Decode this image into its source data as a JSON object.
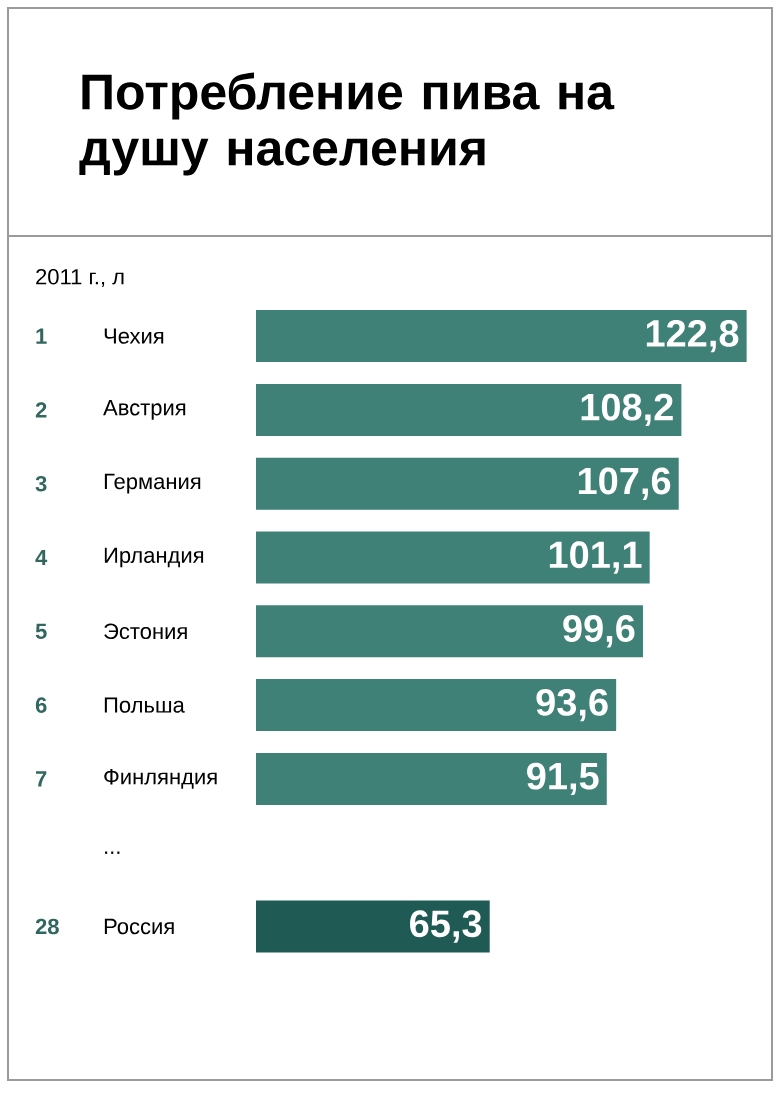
{
  "chart_data": {
    "type": "bar",
    "orientation": "horizontal",
    "title": "Потребление пива на душу населения",
    "subtitle": "2011 г., л",
    "categories": [
      "Чехия",
      "Австрия",
      "Германия",
      "Ирландия",
      "Эстония",
      "Польша",
      "Финляндия",
      "...",
      "Россия"
    ],
    "values": [
      122.8,
      108.2,
      107.6,
      101.1,
      99.6,
      93.6,
      91.5,
      null,
      65.3
    ],
    "value_labels": [
      "122,8",
      "108,2",
      "107,6",
      "101,1",
      "99,6",
      "93,6",
      "91,5",
      null,
      "65,3"
    ],
    "colors": [
      "#3f8077",
      "#3f8077",
      "#3f8077",
      "#3f8077",
      "#3f8077",
      "#3f8077",
      "#3f8077",
      "#3f8077",
      "#1f5a55"
    ],
    "xlim": [
      13,
      124
    ],
    "annotations": [
      "1",
      "2",
      "3",
      "4",
      "5",
      "6",
      "7",
      "28"
    ]
  }
}
